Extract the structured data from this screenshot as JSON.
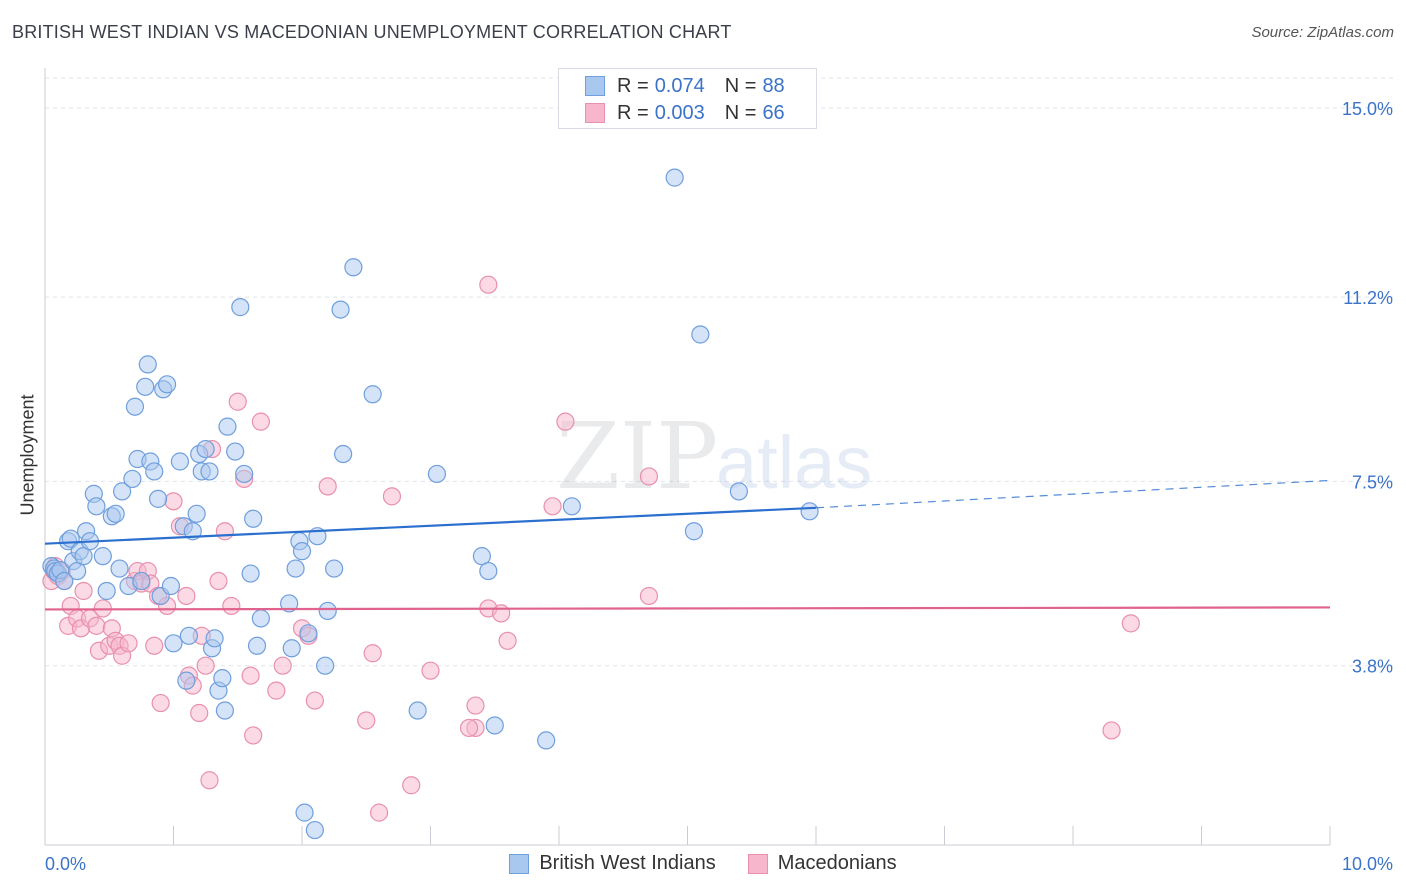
{
  "title": "BRITISH WEST INDIAN VS MACEDONIAN UNEMPLOYMENT CORRELATION CHART",
  "source": "Source: ZipAtlas.com",
  "watermark": {
    "zip": "ZIP",
    "atlas": "atlas"
  },
  "legend": {
    "rows": [
      {
        "r_label": "R =",
        "r_value": "0.074",
        "n_label": "N =",
        "n_value": "88"
      },
      {
        "r_label": "R =",
        "r_value": "0.003",
        "n_label": "N =",
        "n_value": "66"
      }
    ]
  },
  "bottom_legend": {
    "series1": "British West Indians",
    "series2": "Macedonians"
  },
  "colors": {
    "blue_fill": "#a9c8f0",
    "blue_stroke": "#6f9fdc",
    "blue_line": "#2b6fcf",
    "pink_fill": "#f7b6cb",
    "pink_stroke": "#e890ad",
    "pink_line": "#e0628f",
    "axis_text": "#3b73c8",
    "grid": "#dfe3ea"
  },
  "chart_data": {
    "type": "scatter",
    "title": "BRITISH WEST INDIAN VS MACEDONIAN UNEMPLOYMENT CORRELATION CHART",
    "xlabel": "",
    "ylabel": "Unemployment",
    "xlim": [
      0,
      10
    ],
    "ylim": [
      0.2,
      15.6
    ],
    "x_tick_labels": [
      "0.0%",
      "10.0%"
    ],
    "y_ticks": [
      3.8,
      7.5,
      11.2,
      15.0
    ],
    "y_tick_labels": [
      "3.8%",
      "7.5%",
      "11.2%",
      "15.0%"
    ],
    "series": [
      {
        "name": "British West Indians",
        "R": 0.074,
        "N": 88,
        "trend": {
          "x0": 0.0,
          "y0": 6.25,
          "x1": 6.0,
          "y1": 6.97,
          "dash_to_x": 10.0,
          "dash_to_y": 7.52
        },
        "points": [
          [
            0.05,
            5.8
          ],
          [
            0.07,
            5.75
          ],
          [
            0.08,
            5.7
          ],
          [
            0.1,
            5.65
          ],
          [
            0.12,
            5.72
          ],
          [
            0.15,
            5.5
          ],
          [
            0.18,
            6.3
          ],
          [
            0.2,
            6.35
          ],
          [
            0.22,
            5.9
          ],
          [
            0.25,
            5.7
          ],
          [
            0.27,
            6.1
          ],
          [
            0.3,
            6.0
          ],
          [
            0.32,
            6.5
          ],
          [
            0.35,
            6.3
          ],
          [
            0.38,
            7.25
          ],
          [
            0.4,
            7.0
          ],
          [
            0.45,
            6.0
          ],
          [
            0.48,
            5.3
          ],
          [
            0.52,
            6.8
          ],
          [
            0.55,
            6.85
          ],
          [
            0.58,
            5.75
          ],
          [
            0.6,
            7.3
          ],
          [
            0.65,
            5.4
          ],
          [
            0.68,
            7.55
          ],
          [
            0.7,
            9.0
          ],
          [
            0.72,
            7.95
          ],
          [
            0.75,
            5.5
          ],
          [
            0.78,
            9.4
          ],
          [
            0.8,
            9.85
          ],
          [
            0.82,
            7.9
          ],
          [
            0.85,
            7.7
          ],
          [
            0.88,
            7.15
          ],
          [
            0.9,
            5.2
          ],
          [
            0.92,
            9.35
          ],
          [
            0.95,
            9.45
          ],
          [
            0.98,
            5.4
          ],
          [
            1.0,
            4.25
          ],
          [
            1.05,
            7.9
          ],
          [
            1.08,
            6.6
          ],
          [
            1.1,
            3.5
          ],
          [
            1.12,
            4.4
          ],
          [
            1.15,
            6.5
          ],
          [
            1.18,
            6.85
          ],
          [
            1.2,
            8.05
          ],
          [
            1.22,
            7.7
          ],
          [
            1.25,
            8.15
          ],
          [
            1.28,
            7.7
          ],
          [
            1.3,
            4.15
          ],
          [
            1.32,
            4.35
          ],
          [
            1.35,
            3.3
          ],
          [
            1.38,
            3.55
          ],
          [
            1.4,
            2.9
          ],
          [
            1.42,
            8.6
          ],
          [
            1.48,
            8.1
          ],
          [
            1.52,
            11.0
          ],
          [
            1.55,
            7.65
          ],
          [
            1.6,
            5.65
          ],
          [
            1.62,
            6.75
          ],
          [
            1.65,
            4.2
          ],
          [
            1.68,
            4.75
          ],
          [
            1.9,
            5.05
          ],
          [
            1.92,
            4.15
          ],
          [
            1.95,
            5.75
          ],
          [
            1.98,
            6.3
          ],
          [
            2.0,
            6.1
          ],
          [
            2.02,
            0.85
          ],
          [
            2.05,
            4.45
          ],
          [
            2.1,
            0.5
          ],
          [
            2.12,
            6.4
          ],
          [
            2.18,
            3.8
          ],
          [
            2.2,
            4.9
          ],
          [
            2.25,
            5.75
          ],
          [
            2.3,
            10.95
          ],
          [
            2.32,
            8.05
          ],
          [
            2.4,
            11.8
          ],
          [
            2.55,
            9.25
          ],
          [
            2.9,
            2.9
          ],
          [
            3.05,
            7.65
          ],
          [
            3.4,
            6.0
          ],
          [
            3.45,
            5.7
          ],
          [
            3.5,
            2.6
          ],
          [
            3.9,
            2.3
          ],
          [
            4.1,
            7.0
          ],
          [
            4.9,
            13.6
          ],
          [
            5.05,
            6.5
          ],
          [
            5.1,
            10.45
          ],
          [
            5.4,
            7.3
          ],
          [
            5.95,
            6.9
          ]
        ]
      },
      {
        "name": "Macedonians",
        "R": 0.003,
        "N": 66,
        "trend": {
          "x0": 0.0,
          "y0": 4.93,
          "x1": 10.0,
          "y1": 4.97
        },
        "points": [
          [
            0.05,
            5.5
          ],
          [
            0.07,
            5.7
          ],
          [
            0.08,
            5.8
          ],
          [
            0.1,
            5.6
          ],
          [
            0.13,
            5.7
          ],
          [
            0.15,
            5.5
          ],
          [
            0.18,
            4.6
          ],
          [
            0.2,
            5.0
          ],
          [
            0.25,
            4.75
          ],
          [
            0.28,
            4.55
          ],
          [
            0.3,
            5.3
          ],
          [
            0.35,
            4.75
          ],
          [
            0.4,
            4.6
          ],
          [
            0.42,
            4.1
          ],
          [
            0.45,
            4.95
          ],
          [
            0.5,
            4.2
          ],
          [
            0.52,
            4.55
          ],
          [
            0.55,
            4.3
          ],
          [
            0.58,
            4.2
          ],
          [
            0.6,
            4.0
          ],
          [
            0.65,
            4.25
          ],
          [
            0.7,
            5.5
          ],
          [
            0.72,
            5.7
          ],
          [
            0.75,
            5.45
          ],
          [
            0.8,
            5.7
          ],
          [
            0.82,
            5.45
          ],
          [
            0.85,
            4.2
          ],
          [
            0.88,
            5.2
          ],
          [
            0.9,
            3.05
          ],
          [
            0.95,
            5.0
          ],
          [
            1.0,
            7.1
          ],
          [
            1.05,
            6.6
          ],
          [
            1.1,
            5.2
          ],
          [
            1.12,
            3.6
          ],
          [
            1.15,
            3.4
          ],
          [
            1.2,
            2.85
          ],
          [
            1.22,
            4.4
          ],
          [
            1.25,
            3.8
          ],
          [
            1.28,
            1.5
          ],
          [
            1.3,
            8.15
          ],
          [
            1.35,
            5.5
          ],
          [
            1.4,
            6.5
          ],
          [
            1.45,
            5.0
          ],
          [
            1.5,
            9.1
          ],
          [
            1.55,
            7.55
          ],
          [
            1.6,
            3.6
          ],
          [
            1.62,
            2.4
          ],
          [
            1.68,
            8.7
          ],
          [
            1.8,
            3.3
          ],
          [
            1.85,
            3.8
          ],
          [
            2.0,
            4.55
          ],
          [
            2.05,
            4.4
          ],
          [
            2.1,
            3.1
          ],
          [
            2.2,
            7.4
          ],
          [
            2.5,
            2.7
          ],
          [
            2.55,
            4.05
          ],
          [
            2.6,
            0.85
          ],
          [
            2.7,
            7.2
          ],
          [
            2.85,
            1.4
          ],
          [
            3.0,
            3.7
          ],
          [
            3.35,
            3.0
          ],
          [
            3.35,
            2.55
          ],
          [
            3.45,
            11.45
          ],
          [
            3.6,
            4.3
          ],
          [
            4.05,
            8.7
          ],
          [
            4.7,
            7.6
          ]
        ]
      }
    ],
    "extra_pink_points": [
      [
        3.45,
        4.95
      ],
      [
        3.55,
        4.85
      ],
      [
        3.95,
        7.0
      ],
      [
        4.7,
        5.2
      ],
      [
        8.3,
        2.5
      ],
      [
        8.45,
        4.65
      ],
      [
        3.3,
        2.55
      ]
    ]
  }
}
